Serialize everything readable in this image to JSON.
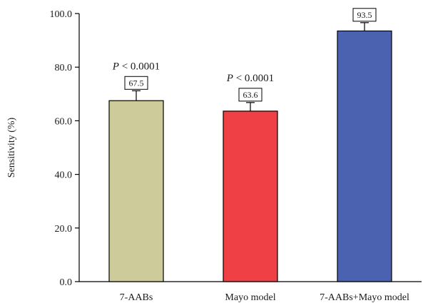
{
  "chart_data": {
    "type": "bar",
    "title": "",
    "xlabel": "",
    "ylabel": "Sensitivity (%)",
    "ylim": [
      0,
      100
    ],
    "yticks": [
      "0.0",
      "20.0",
      "40.0",
      "60.0",
      "80.0",
      "100.0"
    ],
    "grid": false,
    "categories": [
      "7-AABs",
      "Mayo model",
      "7-AABs+Mayo model"
    ],
    "values": [
      67.5,
      63.6,
      93.5
    ],
    "value_labels": [
      "67.5",
      "63.6",
      "93.5"
    ],
    "error_upper": [
      71.2,
      66.8,
      96.6
    ],
    "annotations": [
      {
        "category": "7-AABs",
        "p_symbol": "P",
        "text": " < 0.0001"
      },
      {
        "category": "Mayo model",
        "p_symbol": "P",
        "text": " < 0.0001"
      }
    ],
    "colors": {
      "7-AABs": "#cccb99",
      "Mayo model": "#ef4046",
      "7-AABs+Mayo model": "#4a62b0"
    }
  }
}
